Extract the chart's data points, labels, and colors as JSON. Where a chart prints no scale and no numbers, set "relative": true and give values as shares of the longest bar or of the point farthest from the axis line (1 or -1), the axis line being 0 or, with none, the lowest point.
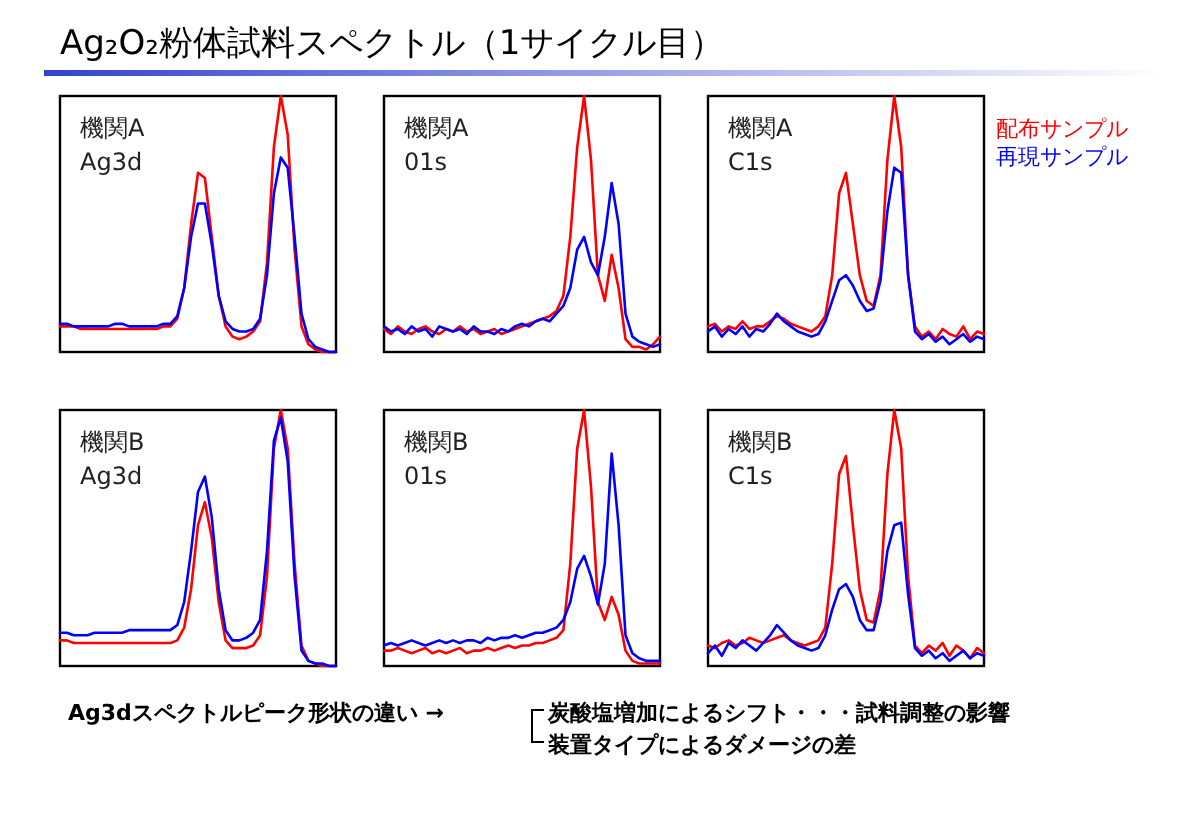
{
  "chart_data": [
    {
      "type": "line",
      "relative": true,
      "title": "機関A",
      "subtitle": "Ag3d",
      "categories": [
        null,
        null,
        null,
        null,
        null,
        null,
        null,
        null,
        null,
        null,
        null,
        null,
        null,
        null,
        null,
        null,
        null,
        null,
        null,
        null,
        null,
        null,
        null,
        null,
        null,
        null,
        null,
        null,
        null,
        null,
        null,
        null,
        null,
        null,
        null,
        null,
        null,
        null,
        null,
        null,
        null
      ],
      "series": [
        {
          "color": "#ff0000",
          "values": [
            0.1,
            0.1,
            0.1,
            0.09,
            0.09,
            0.09,
            0.09,
            0.09,
            0.09,
            0.09,
            0.09,
            0.09,
            0.09,
            0.09,
            0.09,
            0.1,
            0.1,
            0.13,
            0.25,
            0.5,
            0.7,
            0.68,
            0.45,
            0.22,
            0.1,
            0.06,
            0.05,
            0.06,
            0.08,
            0.12,
            0.35,
            0.8,
            1.0,
            0.85,
            0.4,
            0.1,
            0.03,
            0.01,
            0,
            0,
            0
          ]
        },
        {
          "color": "#0000ff",
          "values": [
            0.11,
            0.11,
            0.1,
            0.1,
            0.1,
            0.1,
            0.1,
            0.1,
            0.11,
            0.11,
            0.1,
            0.1,
            0.1,
            0.1,
            0.1,
            0.11,
            0.11,
            0.14,
            0.25,
            0.45,
            0.58,
            0.58,
            0.42,
            0.22,
            0.12,
            0.09,
            0.08,
            0.08,
            0.09,
            0.13,
            0.3,
            0.62,
            0.76,
            0.72,
            0.45,
            0.15,
            0.05,
            0.02,
            0.01,
            0,
            0
          ]
        }
      ]
    },
    {
      "type": "line",
      "relative": true,
      "title": "機関A",
      "subtitle": "01s",
      "categories": [
        null,
        null,
        null,
        null,
        null,
        null,
        null,
        null,
        null,
        null,
        null,
        null,
        null,
        null,
        null,
        null,
        null,
        null,
        null,
        null,
        null,
        null,
        null,
        null,
        null,
        null,
        null,
        null,
        null,
        null,
        null,
        null,
        null,
        null,
        null,
        null,
        null,
        null,
        null,
        null,
        null
      ],
      "series": [
        {
          "color": "#ff0000",
          "values": [
            0.09,
            0.07,
            0.1,
            0.08,
            0.07,
            0.09,
            0.1,
            0.08,
            0.07,
            0.09,
            0.08,
            0.1,
            0.08,
            0.09,
            0.07,
            0.08,
            0.09,
            0.07,
            0.08,
            0.09,
            0.1,
            0.11,
            0.12,
            0.13,
            0.14,
            0.16,
            0.22,
            0.45,
            0.8,
            1.0,
            0.75,
            0.3,
            0.2,
            0.38,
            0.25,
            0.05,
            0.02,
            0.02,
            0.01,
            0.03,
            0.06
          ]
        },
        {
          "color": "#0000ff",
          "values": [
            0.1,
            0.08,
            0.09,
            0.07,
            0.1,
            0.08,
            0.09,
            0.06,
            0.1,
            0.09,
            0.08,
            0.09,
            0.07,
            0.1,
            0.08,
            0.08,
            0.07,
            0.09,
            0.08,
            0.1,
            0.11,
            0.1,
            0.12,
            0.13,
            0.12,
            0.15,
            0.18,
            0.25,
            0.4,
            0.45,
            0.35,
            0.3,
            0.45,
            0.66,
            0.5,
            0.15,
            0.06,
            0.04,
            0.03,
            0.02,
            0.03
          ]
        }
      ]
    },
    {
      "type": "line",
      "relative": true,
      "title": "機関A",
      "subtitle": "C1s",
      "legend": "right",
      "categories": [
        null,
        null,
        null,
        null,
        null,
        null,
        null,
        null,
        null,
        null,
        null,
        null,
        null,
        null,
        null,
        null,
        null,
        null,
        null,
        null,
        null,
        null,
        null,
        null,
        null,
        null,
        null,
        null,
        null,
        null,
        null,
        null,
        null,
        null,
        null,
        null,
        null,
        null,
        null,
        null,
        null
      ],
      "series": [
        {
          "name": "配布サンプル",
          "color": "#ff0000",
          "values": [
            0.1,
            0.11,
            0.08,
            0.1,
            0.09,
            0.12,
            0.09,
            0.1,
            0.1,
            0.12,
            0.14,
            0.13,
            0.11,
            0.1,
            0.09,
            0.08,
            0.1,
            0.14,
            0.3,
            0.62,
            0.7,
            0.5,
            0.3,
            0.2,
            0.18,
            0.3,
            0.75,
            1.0,
            0.8,
            0.3,
            0.1,
            0.06,
            0.08,
            0.05,
            0.09,
            0.07,
            0.06,
            0.1,
            0.05,
            0.08,
            0.07
          ]
        },
        {
          "name": "再現サンプル",
          "color": "#0000ff",
          "values": [
            0.08,
            0.1,
            0.06,
            0.09,
            0.07,
            0.1,
            0.06,
            0.09,
            0.08,
            0.11,
            0.15,
            0.12,
            0.1,
            0.08,
            0.07,
            0.06,
            0.07,
            0.12,
            0.2,
            0.28,
            0.3,
            0.26,
            0.2,
            0.16,
            0.17,
            0.28,
            0.55,
            0.72,
            0.7,
            0.3,
            0.08,
            0.05,
            0.07,
            0.04,
            0.06,
            0.03,
            0.05,
            0.07,
            0.04,
            0.06,
            0.05
          ]
        }
      ]
    },
    {
      "type": "line",
      "relative": true,
      "title": "機関B",
      "subtitle": "Ag3d",
      "categories": [
        null,
        null,
        null,
        null,
        null,
        null,
        null,
        null,
        null,
        null,
        null,
        null,
        null,
        null,
        null,
        null,
        null,
        null,
        null,
        null,
        null,
        null,
        null,
        null,
        null,
        null,
        null,
        null,
        null,
        null,
        null,
        null,
        null,
        null,
        null,
        null,
        null,
        null,
        null,
        null,
        null
      ],
      "series": [
        {
          "color": "#ff0000",
          "values": [
            0.1,
            0.1,
            0.09,
            0.09,
            0.09,
            0.09,
            0.09,
            0.09,
            0.09,
            0.09,
            0.09,
            0.09,
            0.09,
            0.09,
            0.09,
            0.09,
            0.09,
            0.1,
            0.15,
            0.3,
            0.55,
            0.64,
            0.5,
            0.25,
            0.1,
            0.07,
            0.07,
            0.07,
            0.08,
            0.12,
            0.35,
            0.85,
            1.0,
            0.85,
            0.4,
            0.08,
            0.02,
            0.01,
            0,
            0,
            0
          ]
        },
        {
          "color": "#0000ff",
          "values": [
            0.13,
            0.13,
            0.12,
            0.12,
            0.12,
            0.13,
            0.13,
            0.13,
            0.13,
            0.13,
            0.14,
            0.14,
            0.14,
            0.14,
            0.14,
            0.14,
            0.14,
            0.16,
            0.25,
            0.45,
            0.68,
            0.74,
            0.58,
            0.3,
            0.14,
            0.1,
            0.1,
            0.11,
            0.13,
            0.18,
            0.45,
            0.88,
            0.97,
            0.8,
            0.35,
            0.06,
            0.02,
            0.01,
            0.01,
            0,
            0
          ]
        }
      ]
    },
    {
      "type": "line",
      "relative": true,
      "title": "機関B",
      "subtitle": "01s",
      "categories": [
        null,
        null,
        null,
        null,
        null,
        null,
        null,
        null,
        null,
        null,
        null,
        null,
        null,
        null,
        null,
        null,
        null,
        null,
        null,
        null,
        null,
        null,
        null,
        null,
        null,
        null,
        null,
        null,
        null,
        null,
        null,
        null,
        null,
        null,
        null,
        null,
        null,
        null,
        null,
        null,
        null
      ],
      "series": [
        {
          "color": "#ff0000",
          "values": [
            0.06,
            0.06,
            0.07,
            0.06,
            0.05,
            0.06,
            0.07,
            0.05,
            0.06,
            0.05,
            0.06,
            0.07,
            0.05,
            0.06,
            0.06,
            0.07,
            0.06,
            0.07,
            0.08,
            0.07,
            0.08,
            0.08,
            0.09,
            0.09,
            0.1,
            0.11,
            0.14,
            0.4,
            0.85,
            1.0,
            0.7,
            0.25,
            0.18,
            0.27,
            0.2,
            0.06,
            0.02,
            0.01,
            0.01,
            0.01,
            0.01
          ]
        },
        {
          "color": "#0000ff",
          "values": [
            0.08,
            0.09,
            0.08,
            0.09,
            0.1,
            0.09,
            0.08,
            0.09,
            0.1,
            0.09,
            0.1,
            0.09,
            0.1,
            0.1,
            0.09,
            0.11,
            0.1,
            0.11,
            0.11,
            0.12,
            0.11,
            0.12,
            0.13,
            0.13,
            0.14,
            0.15,
            0.18,
            0.25,
            0.38,
            0.43,
            0.35,
            0.24,
            0.4,
            0.83,
            0.55,
            0.12,
            0.05,
            0.03,
            0.02,
            0.02,
            0.02
          ]
        }
      ]
    },
    {
      "type": "line",
      "relative": true,
      "title": "機関B",
      "subtitle": "C1s",
      "categories": [
        null,
        null,
        null,
        null,
        null,
        null,
        null,
        null,
        null,
        null,
        null,
        null,
        null,
        null,
        null,
        null,
        null,
        null,
        null,
        null,
        null,
        null,
        null,
        null,
        null,
        null,
        null,
        null,
        null,
        null,
        null,
        null,
        null,
        null,
        null,
        null,
        null,
        null,
        null,
        null,
        null
      ],
      "series": [
        {
          "color": "#ff0000",
          "values": [
            0.08,
            0.07,
            0.09,
            0.1,
            0.08,
            0.09,
            0.11,
            0.1,
            0.09,
            0.1,
            0.11,
            0.12,
            0.1,
            0.09,
            0.08,
            0.09,
            0.1,
            0.15,
            0.4,
            0.75,
            0.82,
            0.55,
            0.3,
            0.18,
            0.17,
            0.3,
            0.75,
            1.0,
            0.85,
            0.35,
            0.08,
            0.05,
            0.08,
            0.06,
            0.09,
            0.04,
            0.08,
            0.06,
            0.03,
            0.07,
            0.05
          ]
        },
        {
          "color": "#0000ff",
          "values": [
            0.05,
            0.08,
            0.04,
            0.09,
            0.07,
            0.1,
            0.08,
            0.06,
            0.09,
            0.12,
            0.16,
            0.13,
            0.1,
            0.08,
            0.07,
            0.06,
            0.07,
            0.12,
            0.22,
            0.3,
            0.32,
            0.27,
            0.18,
            0.14,
            0.14,
            0.25,
            0.45,
            0.55,
            0.56,
            0.28,
            0.07,
            0.04,
            0.06,
            0.03,
            0.05,
            0.02,
            0.04,
            0.06,
            0.03,
            0.05,
            0.04
          ]
        }
      ]
    },
    {
      "type": "other",
      "title": "Ag₂O₂粉体試料スペクトル（1サイクル目）",
      "annotations": [
        "Ag3dスペクトルピーク形状の違い →",
        "炭酸塩増加によるシフト・・・試料調整の影響",
        "装置タイプによるダメージの差"
      ]
    }
  ]
}
